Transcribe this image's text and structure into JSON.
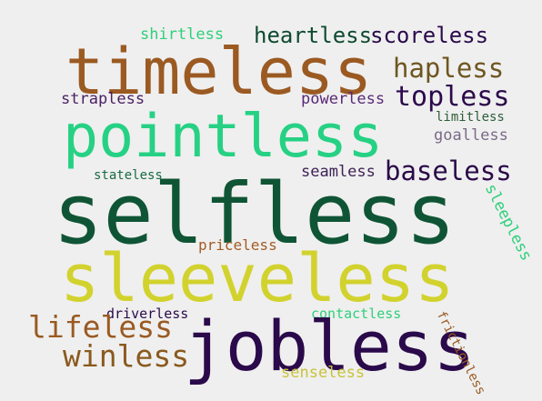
{
  "background_color": "#efefef",
  "words": {
    "shirtless": {
      "text": "shirtless",
      "color": "#2fd07a"
    },
    "heartless": {
      "text": "heartless",
      "color": "#0e4a30"
    },
    "scoreless": {
      "text": "scoreless",
      "color": "#2a0a4a"
    },
    "timeless": {
      "text": "timeless",
      "color": "#9b5a22"
    },
    "hapless": {
      "text": "hapless",
      "color": "#6e5620"
    },
    "strapless": {
      "text": "strapless",
      "color": "#4a1f63"
    },
    "powerless": {
      "text": "powerless",
      "color": "#5a2a76"
    },
    "topless": {
      "text": "topless",
      "color": "#2c0a4c"
    },
    "limitless": {
      "text": "limitless",
      "color": "#2c5e38"
    },
    "pointless": {
      "text": "pointless",
      "color": "#26d184"
    },
    "goalless": {
      "text": "goalless",
      "color": "#7a6a88"
    },
    "stateless": {
      "text": "stateless",
      "color": "#176a44"
    },
    "seamless": {
      "text": "seamless",
      "color": "#3e2256"
    },
    "baseless": {
      "text": "baseless",
      "color": "#2a0a48"
    },
    "selfless": {
      "text": "selfless",
      "color": "#0f5535"
    },
    "sleepless": {
      "text": "sleepless",
      "color": "#2fd07a"
    },
    "priceless": {
      "text": "priceless",
      "color": "#a45c24"
    },
    "sleeveless": {
      "text": "sleeveless",
      "color": "#d2d22e"
    },
    "driverless": {
      "text": "driverless",
      "color": "#2a0a4a"
    },
    "contactless": {
      "text": "contactless",
      "color": "#2fd07a"
    },
    "lifeless": {
      "text": "lifeless",
      "color": "#9a5a22"
    },
    "jobless": {
      "text": "jobless",
      "color": "#2a0a4a"
    },
    "frictionless": {
      "text": "frictionless",
      "color": "#9a5a22"
    },
    "winless": {
      "text": "winless",
      "color": "#8a5a1e"
    },
    "senseless": {
      "text": "senseless",
      "color": "#c8c43a"
    }
  }
}
